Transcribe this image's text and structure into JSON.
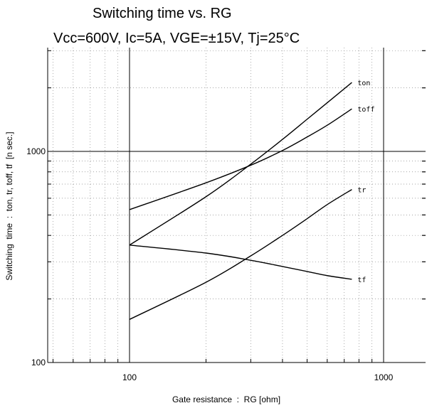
{
  "chart_data": {
    "type": "line",
    "title": "Switching time  vs.  RG",
    "subtitle": "Vcc=600V, Ic=5A, VGE=±15V, Tj=25°C",
    "xlabel": "Gate resistance  :  RG [ohm]",
    "ylabel": "Switching  time  :  ton, tr, toff, tf  [n sec.]",
    "xscale": "log",
    "yscale": "log",
    "xlim": [
      50,
      1700
    ],
    "ylim": [
      100,
      3000
    ],
    "xticks": [
      100,
      1000
    ],
    "yticks": [
      100,
      1000
    ],
    "xtick_labels": [
      "100",
      "1000"
    ],
    "ytick_labels": [
      "100",
      "1000"
    ],
    "grid": true,
    "series": [
      {
        "name": "ton",
        "x": [
          100,
          200,
          300,
          400,
          500,
          600,
          750
        ],
        "y": [
          360,
          610,
          870,
          1140,
          1420,
          1700,
          2120
        ]
      },
      {
        "name": "toff",
        "x": [
          100,
          200,
          300,
          400,
          500,
          600,
          750
        ],
        "y": [
          530,
          710,
          860,
          1010,
          1170,
          1330,
          1590
        ]
      },
      {
        "name": "tr",
        "x": [
          100,
          200,
          300,
          400,
          500,
          600,
          750
        ],
        "y": [
          160,
          240,
          320,
          400,
          480,
          560,
          660
        ]
      },
      {
        "name": "tf",
        "x": [
          100,
          200,
          300,
          400,
          500,
          600,
          750
        ],
        "y": [
          360,
          330,
          305,
          285,
          270,
          258,
          248
        ]
      }
    ]
  }
}
